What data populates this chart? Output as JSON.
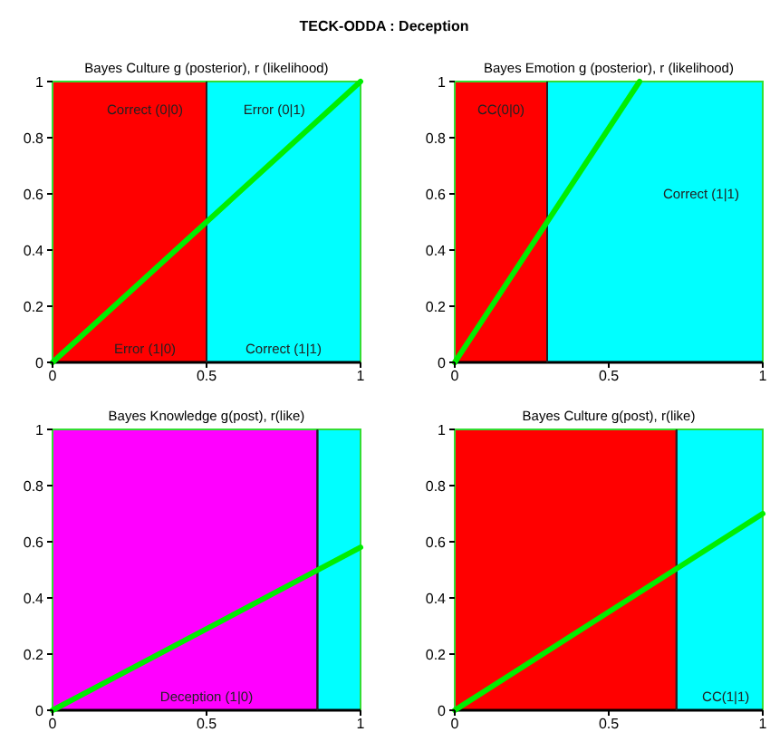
{
  "chart_data": [
    {
      "type": "line",
      "title": "TECK-ODDA : Deception",
      "subtitle": "Bayes Culture g (posterior), r (likelihood)",
      "xlim": [
        0,
        1
      ],
      "ylim": [
        0,
        1
      ],
      "xticks": [
        0,
        0.5,
        1
      ],
      "yticks": [
        0,
        0.2,
        0.4,
        0.6,
        0.8,
        1
      ],
      "series": [
        {
          "color": "#00ee00",
          "x": [
            0,
            1
          ],
          "values": [
            0,
            1
          ]
        }
      ],
      "bands": [
        {
          "axis": "x",
          "from": 0,
          "to": 0.5,
          "color": "#ff0000"
        },
        {
          "axis": "x",
          "from": 0.5,
          "to": 1,
          "color": "#00ffff"
        }
      ],
      "ref_lines": [
        {
          "axis": "x",
          "value": 0.5,
          "color": "#222222"
        }
      ],
      "annotations": [
        "Correct (0|0)",
        "Error (0|1)",
        "Error (1|0)",
        "Correct (1|1)"
      ]
    },
    {
      "type": "line",
      "title": "Bayes Emotion g (posterior), r (likelihood)",
      "xlim": [
        0,
        1
      ],
      "ylim": [
        0,
        1
      ],
      "xticks": [
        0,
        0.5,
        1
      ],
      "yticks": [
        0,
        0.2,
        0.4,
        0.6,
        0.8,
        1
      ],
      "series": [
        {
          "color": "#00ee00",
          "x": [
            0,
            0.6
          ],
          "values": [
            0,
            1
          ]
        }
      ],
      "bands": [
        {
          "axis": "x",
          "from": 0,
          "to": 0.3,
          "color": "#ff0000"
        },
        {
          "axis": "x",
          "from": 0.3,
          "to": 1,
          "color": "#00ffff"
        }
      ],
      "ref_lines": [
        {
          "axis": "x",
          "value": 0.3,
          "color": "#222222"
        }
      ],
      "annotations": [
        "CC(0|0)",
        "Correct (1|1)"
      ]
    },
    {
      "type": "line",
      "title": "Bayes Knowledge g(post), r(like)",
      "xlim": [
        0,
        1
      ],
      "ylim": [
        0,
        1
      ],
      "xticks": [
        0,
        0.5,
        1
      ],
      "yticks": [
        0,
        0.2,
        0.4,
        0.6,
        0.8,
        1
      ],
      "series": [
        {
          "color": "#00ee00",
          "x": [
            0,
            1
          ],
          "values": [
            0,
            0.58
          ]
        }
      ],
      "bands": [
        {
          "axis": "x",
          "from": 0,
          "to": 0.86,
          "color": "#ff00ff"
        },
        {
          "axis": "x",
          "from": 0.86,
          "to": 1,
          "color": "#00ffff"
        }
      ],
      "ref_lines": [
        {
          "axis": "x",
          "value": 0.86,
          "color": "#222222"
        }
      ],
      "annotations": [
        "Deception (1|0)"
      ]
    },
    {
      "type": "line",
      "title": "Bayes Culture g(post), r(like)",
      "xlim": [
        0,
        1
      ],
      "ylim": [
        0,
        1
      ],
      "xticks": [
        0,
        0.5,
        1
      ],
      "yticks": [
        0,
        0.2,
        0.4,
        0.6,
        0.8,
        1
      ],
      "series": [
        {
          "color": "#00ee00",
          "x": [
            0,
            1
          ],
          "values": [
            0,
            0.7
          ]
        }
      ],
      "bands": [
        {
          "axis": "x",
          "from": 0,
          "to": 0.72,
          "color": "#ff0000"
        },
        {
          "axis": "x",
          "from": 0.72,
          "to": 1,
          "color": "#00ffff"
        }
      ],
      "ref_lines": [
        {
          "axis": "x",
          "value": 0.72,
          "color": "#222222"
        }
      ],
      "annotations": [
        "CC(1|1)"
      ]
    }
  ]
}
